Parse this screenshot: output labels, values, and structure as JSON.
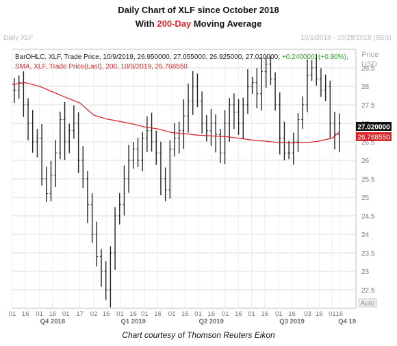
{
  "titles": {
    "line1": "Daily Chart of XLF since October 2018",
    "line2_prefix": "With ",
    "line2_highlight": "200-Day",
    "line2_suffix": " Moving Average"
  },
  "watermark_left": "Daily XLF",
  "watermark_right": "10/1/2018 - 10/28/2019 (SES)",
  "legend": {
    "ohlc_prefix": "BarOHLC, XLF, Trade Price, 10/9/2019, 26.950000, 27.055000, 26.925000, 27.020000,",
    "ohlc_change": "+0.240000, (+0.90%),",
    "sma_text": "SMA, XLF, Trade Price(Last), 200, 10/9/2019, 26.768550"
  },
  "axis": {
    "price_label": "Price",
    "currency_label": "USD",
    "auto_label": "Auto",
    "y_ticks": [
      "28.5",
      "28",
      "27.5",
      "27",
      "26.5",
      "26",
      "25.5",
      "25",
      "24.5",
      "24",
      "23.5",
      "23",
      "22.5"
    ],
    "x_day_ticks": [
      "01",
      "16",
      "01",
      "16",
      "01",
      "17",
      "02",
      "16",
      "01",
      "16",
      "01",
      "16",
      "01",
      "16",
      "01",
      "16",
      "01",
      "16",
      "01",
      "16",
      "01",
      "16",
      "03",
      "16",
      "01",
      "16"
    ],
    "quarters": [
      "Q4 2018",
      "Q1 2019",
      "Q2 2019",
      "Q3 2019",
      "Q4 19"
    ]
  },
  "badges": {
    "price": "27.020000",
    "sma": "26.768550"
  },
  "caption": "Chart courtesy of Thomson Reuters Eikon",
  "colors": {
    "sma": "#d9262b",
    "bars": "#222222",
    "grid": "#dedede",
    "highlight": "#e0262e",
    "change": "#2aa02a"
  },
  "chart_data": {
    "type": "line",
    "title": "Daily Chart of XLF since October 2018",
    "subtitle": "With 200-Day Moving Average",
    "ylabel": "Price USD",
    "ylim": [
      22,
      29
    ],
    "x_range": [
      "2018-10-01",
      "2019-10-28"
    ],
    "series": [
      {
        "name": "BarOHLC, XLF, Trade Price",
        "style": "ohlc",
        "approx_closes": [
          27.9,
          28.1,
          27.5,
          27.0,
          26.5,
          26.6,
          25.5,
          25.1,
          25.6,
          26.2,
          27.1,
          26.5,
          26.8,
          27.0,
          26.0,
          25.5,
          24.8,
          24.0,
          23.4,
          23.0,
          22.5,
          23.5,
          24.5,
          24.8,
          25.5,
          26.0,
          26.3,
          26.0,
          26.6,
          26.8,
          26.5,
          26.2,
          25.5,
          25.2,
          26.3,
          26.6,
          26.8,
          27.2,
          27.6,
          28.0,
          27.6,
          27.0,
          26.8,
          27.0,
          26.7,
          26.2,
          27.0,
          27.5,
          27.3,
          27.0,
          27.5,
          28.0,
          28.1,
          27.8,
          28.4,
          28.6,
          28.2,
          27.5,
          26.6,
          26.2,
          26.2,
          26.5,
          27.1,
          27.5,
          28.3,
          28.5,
          28.2,
          27.9,
          28.0,
          27.0,
          26.7,
          27.0
        ]
      },
      {
        "name": "SMA, XLF, Trade Price(Last), 200",
        "style": "line",
        "x_dates": [
          "2018-10-01",
          "2018-10-16",
          "2018-11-01",
          "2018-11-16",
          "2018-12-01",
          "2018-12-17",
          "2019-01-02",
          "2019-01-16",
          "2019-02-01",
          "2019-02-16",
          "2019-03-01",
          "2019-03-16",
          "2019-04-01",
          "2019-04-16",
          "2019-05-01",
          "2019-05-16",
          "2019-06-01",
          "2019-06-16",
          "2019-07-01",
          "2019-07-16",
          "2019-08-01",
          "2019-08-16",
          "2019-09-03",
          "2019-09-16",
          "2019-10-01",
          "2019-10-09"
        ],
        "values": [
          28.05,
          28.1,
          28.0,
          27.85,
          27.7,
          27.55,
          27.22,
          27.12,
          27.05,
          26.98,
          26.9,
          26.85,
          26.75,
          26.72,
          26.68,
          26.66,
          26.64,
          26.6,
          26.55,
          26.52,
          26.48,
          26.47,
          26.48,
          26.52,
          26.6,
          26.77
        ]
      }
    ]
  }
}
